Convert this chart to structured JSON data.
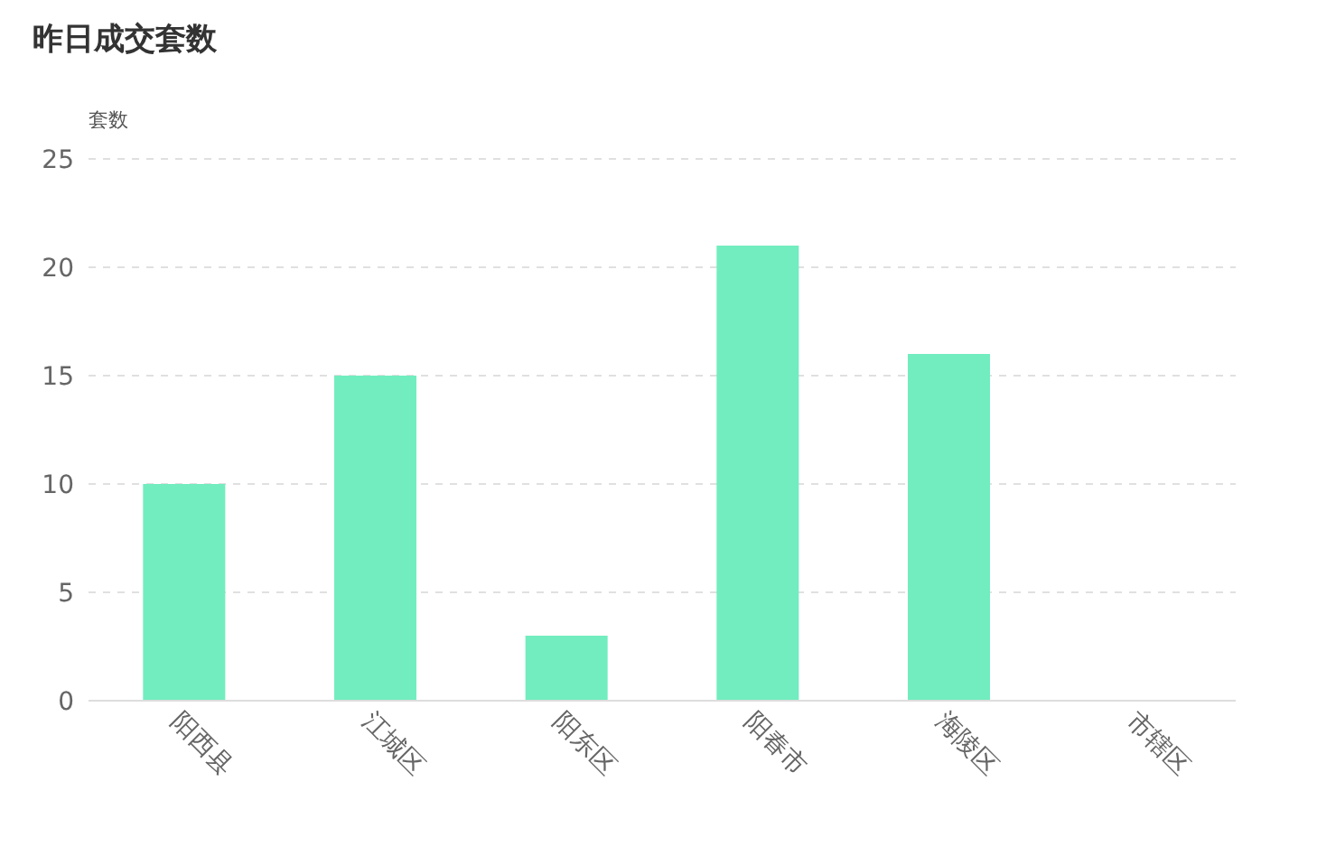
{
  "chart_data": {
    "type": "bar",
    "title": "昨日成交套数",
    "ylabel": "套数",
    "categories": [
      "阳西县",
      "江城区",
      "阳东区",
      "阳春市",
      "海陵区",
      "市辖区"
    ],
    "values": [
      10,
      15,
      3,
      21,
      16,
      0
    ],
    "color": "#72edbf",
    "ylim": [
      0,
      25
    ],
    "yticks": [
      0,
      5,
      10,
      15,
      20,
      25
    ],
    "grid": "y"
  }
}
